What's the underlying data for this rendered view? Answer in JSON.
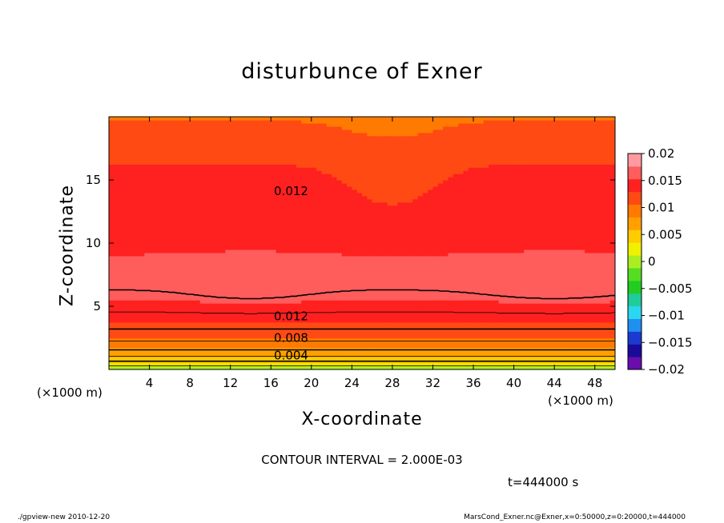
{
  "chart_data": {
    "type": "heatmap",
    "title": "disturbunce of Exner",
    "xlabel": "X-coordinate",
    "ylabel": "Z-coordinate",
    "x_unit": "(×1000 m)",
    "xlim": [
      0,
      50
    ],
    "ylim": [
      0,
      20
    ],
    "x_ticks": [
      4,
      8,
      12,
      16,
      20,
      24,
      28,
      32,
      36,
      40,
      44,
      48
    ],
    "y_ticks": [
      5,
      10,
      15
    ],
    "contour_interval": "CONTOUR INTERVAL = 2.000E-03",
    "time": "t=444000 s",
    "colorbar": {
      "ticks": [
        "0.02",
        "0.015",
        "0.01",
        "0.005",
        "0",
        "−0.005",
        "−0.01",
        "−0.015",
        "−0.02"
      ],
      "range": [
        -0.02,
        0.02
      ],
      "colors": [
        "#6a0dad",
        "#1a0a9a",
        "#1c3ad0",
        "#1f8ff0",
        "#2bd6f0",
        "#1fcc9a",
        "#22cc22",
        "#55dd22",
        "#aaee22",
        "#f0f000",
        "#ffcc00",
        "#ffa000",
        "#ff7a00",
        "#ff4a14",
        "#ff2020",
        "#ff5c5c",
        "#ff9aa0"
      ]
    },
    "contour_labels": [
      {
        "x": 18,
        "z": 14.1,
        "text": "0.012"
      },
      {
        "x": 18,
        "z": 4.2,
        "text": "0.012"
      },
      {
        "x": 18,
        "z": 2.5,
        "text": "0.008"
      },
      {
        "x": 18,
        "z": 1.1,
        "text": "0.004"
      }
    ],
    "contour_levels": [
      0.0,
      0.002,
      0.004,
      0.006,
      0.008,
      0.01,
      0.012,
      0.014,
      0.016
    ],
    "description_ranges": {
      "min_approx": 0.0,
      "max_approx": 0.016
    }
  },
  "footer": {
    "left": "./gpview-new   2010-12-20",
    "right": "MarsCond_Exner.nc@Exner,x=0:50000,z=0:20000,t=444000"
  }
}
